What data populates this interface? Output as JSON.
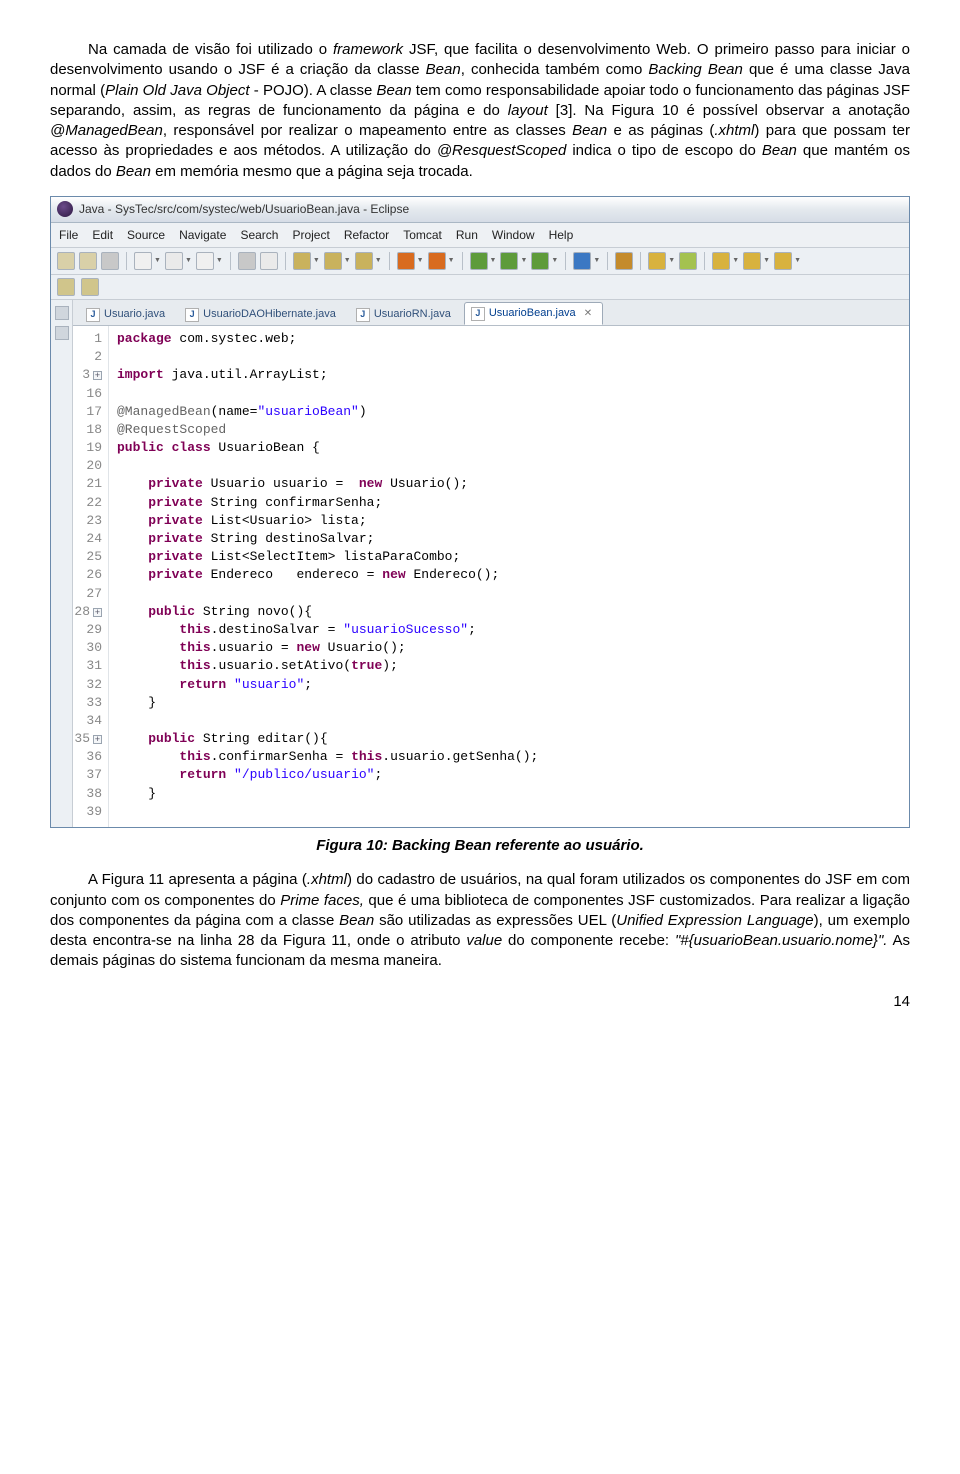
{
  "p1": {
    "t1": "Na camada de visão foi utilizado o ",
    "i1": "framework",
    "t2": " JSF, que facilita o desenvolvimento Web. O primeiro passo para iniciar o desenvolvimento usando o JSF é a criação da classe ",
    "i2": "Bean",
    "t3": ", conhecida também como ",
    "i3": "Backing Bean",
    "t4": " que é uma classe Java normal (",
    "i4": "Plain Old Java Object",
    "t5": " - POJO). A classe ",
    "i5": "Bean",
    "t6": " tem como responsabilidade apoiar todo o funcionamento das páginas JSF separando, assim, as regras de funcionamento da página e do ",
    "i6": "layout",
    "t7": " [3]. Na Figura 10 é possível observar a anotação ",
    "i7": "@ManagedBean",
    "t8": ", responsável por realizar o mapeamento entre as classes ",
    "i8": "Bean",
    "t9": " e as páginas (",
    "i9": ".xhtml",
    "t10": ") para que possam ter acesso às propriedades e aos métodos. A utilização do ",
    "i10": "@ResquestScoped",
    "t11": " indica o tipo de escopo do ",
    "i11": "Bean",
    "t12": " que mantém os dados do ",
    "i12": "Bean",
    "t13": " em memória mesmo que a página seja trocada."
  },
  "ide": {
    "title": "Java - SysTec/src/com/systec/web/UsuarioBean.java - Eclipse",
    "menus": [
      "File",
      "Edit",
      "Source",
      "Navigate",
      "Search",
      "Project",
      "Refactor",
      "Tomcat",
      "Run",
      "Window",
      "Help"
    ],
    "toolbar_colors": [
      "#d9d0a8",
      "#d9d0a8",
      "#c8c8c8",
      "#f0f0f0",
      "#eaeaea",
      "#f0f0f0",
      "#c8c8c8",
      "#eaeaea",
      "#c9b25d",
      "#c9b25d",
      "#c9b25d",
      "#d86b1f",
      "#d86b1f",
      "#5e9b3b",
      "#5e9b3b",
      "#5e9b3b",
      "#3b78c3",
      "#c48b2c",
      "#d8b23e",
      "#a4c24f",
      "#d8b23e",
      "#d8b23e",
      "#d8b23e"
    ],
    "toolbar2_colors": [
      "#d0c58b",
      "#d0c58b"
    ],
    "tabs": [
      {
        "label": "Usuario.java",
        "active": false
      },
      {
        "label": "UsuarioDAOHibernate.java",
        "active": false
      },
      {
        "label": "UsuarioRN.java",
        "active": false
      },
      {
        "label": "UsuarioBean.java",
        "active": true
      }
    ],
    "line_numbers": [
      "1",
      "2",
      "3",
      "16",
      "17",
      "18",
      "19",
      "20",
      "21",
      "22",
      "23",
      "24",
      "25",
      "26",
      "27",
      "28",
      "29",
      "30",
      "31",
      "32",
      "33",
      "34",
      "35",
      "36",
      "37",
      "38",
      "39"
    ],
    "fold_lines": [
      "3",
      "28",
      "35"
    ],
    "code": {
      "l1": [
        [
          "kw",
          "package"
        ],
        [
          "plain",
          " com.systec.web;"
        ]
      ],
      "l2": [
        [
          "plain",
          ""
        ]
      ],
      "l3": [
        [
          "kw",
          "import"
        ],
        [
          "plain",
          " java.util.ArrayList;"
        ]
      ],
      "l4": [
        [
          "plain",
          ""
        ]
      ],
      "l5": [
        [
          "ann",
          "@ManagedBean"
        ],
        [
          "plain",
          "(name="
        ],
        [
          "str",
          "\"usuarioBean\""
        ],
        [
          "plain",
          ")"
        ]
      ],
      "l6": [
        [
          "ann",
          "@RequestScoped"
        ]
      ],
      "l7": [
        [
          "kw",
          "public class"
        ],
        [
          "plain",
          " UsuarioBean {"
        ]
      ],
      "l8": [
        [
          "plain",
          ""
        ]
      ],
      "l9": [
        [
          "plain",
          "    "
        ],
        [
          "kw",
          "private"
        ],
        [
          "plain",
          " Usuario usuario =  "
        ],
        [
          "kw",
          "new"
        ],
        [
          "plain",
          " Usuario();"
        ]
      ],
      "l10": [
        [
          "plain",
          "    "
        ],
        [
          "kw",
          "private"
        ],
        [
          "plain",
          " String confirmarSenha;"
        ]
      ],
      "l11": [
        [
          "plain",
          "    "
        ],
        [
          "kw",
          "private"
        ],
        [
          "plain",
          " List<Usuario> lista;"
        ]
      ],
      "l12": [
        [
          "plain",
          "    "
        ],
        [
          "kw",
          "private"
        ],
        [
          "plain",
          " String destinoSalvar;"
        ]
      ],
      "l13": [
        [
          "plain",
          "    "
        ],
        [
          "kw",
          "private"
        ],
        [
          "plain",
          " List<SelectItem> listaParaCombo;"
        ]
      ],
      "l14": [
        [
          "plain",
          "    "
        ],
        [
          "kw",
          "private"
        ],
        [
          "plain",
          " Endereco   endereco = "
        ],
        [
          "kw",
          "new"
        ],
        [
          "plain",
          " Endereco();"
        ]
      ],
      "l15": [
        [
          "plain",
          ""
        ]
      ],
      "l16": [
        [
          "plain",
          "    "
        ],
        [
          "kw",
          "public"
        ],
        [
          "plain",
          " String novo(){"
        ]
      ],
      "l17": [
        [
          "plain",
          "        "
        ],
        [
          "kw",
          "this"
        ],
        [
          "plain",
          ".destinoSalvar = "
        ],
        [
          "str",
          "\"usuarioSucesso\""
        ],
        [
          "plain",
          ";"
        ]
      ],
      "l18": [
        [
          "plain",
          "        "
        ],
        [
          "kw",
          "this"
        ],
        [
          "plain",
          ".usuario = "
        ],
        [
          "kw",
          "new"
        ],
        [
          "plain",
          " Usuario();"
        ]
      ],
      "l19": [
        [
          "plain",
          "        "
        ],
        [
          "kw",
          "this"
        ],
        [
          "plain",
          ".usuario.setAtivo("
        ],
        [
          "kw",
          "true"
        ],
        [
          "plain",
          ");"
        ]
      ],
      "l20": [
        [
          "plain",
          "        "
        ],
        [
          "kw",
          "return"
        ],
        [
          "plain",
          " "
        ],
        [
          "str",
          "\"usuario\""
        ],
        [
          "plain",
          ";"
        ]
      ],
      "l21": [
        [
          "plain",
          "    }"
        ]
      ],
      "l22": [
        [
          "plain",
          ""
        ]
      ],
      "l23": [
        [
          "plain",
          "    "
        ],
        [
          "kw",
          "public"
        ],
        [
          "plain",
          " String editar(){"
        ]
      ],
      "l24": [
        [
          "plain",
          "        "
        ],
        [
          "kw",
          "this"
        ],
        [
          "plain",
          ".confirmarSenha = "
        ],
        [
          "kw",
          "this"
        ],
        [
          "plain",
          ".usuario.getSenha();"
        ]
      ],
      "l25": [
        [
          "plain",
          "        "
        ],
        [
          "kw",
          "return"
        ],
        [
          "plain",
          " "
        ],
        [
          "str",
          "\"/publico/usuario\""
        ],
        [
          "plain",
          ";"
        ]
      ],
      "l26": [
        [
          "plain",
          "    }"
        ]
      ],
      "l27": [
        [
          "plain",
          ""
        ]
      ]
    }
  },
  "caption": "Figura 10: Backing Bean referente ao usuário.",
  "p2": {
    "t1": "A Figura 11 apresenta a página (",
    "i1": ".xhtml",
    "t2": ") do cadastro de usuários, na qual foram utilizados os componentes do JSF em com conjunto com os componentes do ",
    "i2": "Prime faces,",
    "t3": " que é uma biblioteca de componentes JSF customizados. Para realizar a ligação dos componentes da página com a classe ",
    "i3": "Bean",
    "t4": " são utilizadas as expressões UEL (",
    "i4": "Unified Expression Language",
    "t5": "), um exemplo desta encontra-se na linha 28 da Figura 11, onde o atributo ",
    "i5": "value",
    "t6": " do componente recebe: ",
    "i6": "\"#{usuarioBean.usuario.nome}\".",
    "t7": " As demais páginas do sistema funcionam da mesma maneira."
  },
  "page_number": "14"
}
